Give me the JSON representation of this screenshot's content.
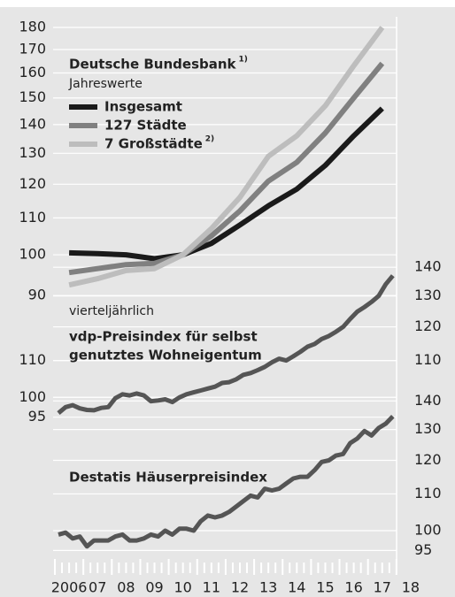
{
  "chart_data": [
    {
      "type": "line",
      "title": "Deutsche Bundesbank",
      "title_note": "1)",
      "subtitle": "Jahreswerte",
      "log_scale": true,
      "x": [
        2006,
        2007,
        2008,
        2009,
        2010,
        2011,
        2012,
        2013,
        2014,
        2015,
        2016,
        2017
      ],
      "series": [
        {
          "name": "Insgesamt",
          "color": "#1a1a1a",
          "values": [
            100.5,
            100.3,
            100,
            99,
            100,
            103,
            108,
            113.5,
            118.5,
            126,
            136,
            146
          ]
        },
        {
          "name": "127 Städte",
          "color": "#808080",
          "values": [
            95.5,
            96.5,
            97.5,
            97.8,
            100,
            105,
            112,
            121,
            127,
            137,
            150,
            164
          ]
        },
        {
          "name": "7 Großstädte",
          "note": "2)",
          "color": "#bdbdbd",
          "values": [
            92.5,
            94,
            96,
            96.5,
            100,
            107,
            116,
            129,
            136,
            147,
            163,
            180
          ]
        }
      ],
      "ylim": [
        88,
        185
      ],
      "yticks": [
        90,
        100,
        110,
        120,
        130,
        140,
        150,
        160,
        170,
        180
      ]
    },
    {
      "type": "line",
      "subtitle": "vierteljährlich",
      "title": [
        "vdp-Preisindex für selbst",
        "genutztes Wohneigentum"
      ],
      "log_scale": true,
      "x": [
        2006,
        2006.25,
        2006.5,
        2006.75,
        2007,
        2007.25,
        2007.5,
        2007.75,
        2008,
        2008.25,
        2008.5,
        2008.75,
        2009,
        2009.25,
        2009.5,
        2009.75,
        2010,
        2010.25,
        2010.5,
        2010.75,
        2011,
        2011.25,
        2011.5,
        2011.75,
        2012,
        2012.25,
        2012.5,
        2012.75,
        2013,
        2013.25,
        2013.5,
        2013.75,
        2014,
        2014.25,
        2014.5,
        2014.75,
        2015,
        2015.25,
        2015.5,
        2015.75,
        2016,
        2016.25,
        2016.5,
        2016.75,
        2017,
        2017.25,
        2017.5,
        2017.75
      ],
      "series": [
        {
          "color": "#555555",
          "values": [
            96,
            97.5,
            98,
            97.2,
            96.8,
            96.7,
            97.3,
            97.5,
            99.8,
            100.8,
            100.5,
            101,
            100.5,
            99,
            99.2,
            99.5,
            98.8,
            100,
            100.8,
            101.3,
            101.8,
            102.3,
            102.8,
            103.8,
            104,
            104.8,
            106,
            106.5,
            107.3,
            108.2,
            109.5,
            110.5,
            110,
            111.2,
            112.5,
            114,
            114.8,
            116.3,
            117.2,
            118.5,
            120,
            122.5,
            124.8,
            126.3,
            128,
            130,
            134,
            137
          ]
        }
      ],
      "ylim": [
        93,
        142
      ],
      "yticks": [
        95,
        100,
        110
      ],
      "y2lim": [
        93,
        142
      ],
      "y2ticks": [
        110,
        120,
        130,
        140
      ]
    },
    {
      "type": "line",
      "title": "Destatis Häuserpreisindex",
      "log_scale": true,
      "x": [
        2006,
        2006.25,
        2006.5,
        2006.75,
        2007,
        2007.25,
        2007.5,
        2007.75,
        2008,
        2008.25,
        2008.5,
        2008.75,
        2009,
        2009.25,
        2009.5,
        2009.75,
        2010,
        2010.25,
        2010.5,
        2010.75,
        2011,
        2011.25,
        2011.5,
        2011.75,
        2012,
        2012.25,
        2012.5,
        2012.75,
        2013,
        2013.25,
        2013.5,
        2013.75,
        2014,
        2014.25,
        2014.5,
        2014.75,
        2015,
        2015.25,
        2015.5,
        2015.75,
        2016,
        2016.25,
        2016.5,
        2016.75,
        2017,
        2017.25,
        2017.5,
        2017.75
      ],
      "series": [
        {
          "color": "#555555",
          "axis": "y2",
          "values": [
            99,
            99.5,
            98,
            98.5,
            96,
            97.5,
            97.5,
            97.5,
            98.5,
            99,
            97.5,
            97.5,
            98,
            99,
            98.5,
            100,
            99,
            100.5,
            100.5,
            100,
            102.5,
            104,
            103.5,
            104,
            105,
            106.5,
            108,
            109.5,
            109,
            111.5,
            111,
            111.5,
            113,
            114.5,
            115,
            115,
            117,
            119.5,
            120,
            121.5,
            122,
            125.5,
            127,
            129.5,
            128,
            130.5,
            132,
            134.5
          ]
        }
      ],
      "y2lim": [
        94,
        145
      ],
      "y2ticks": [
        95,
        100,
        110,
        120,
        130,
        140
      ]
    }
  ],
  "x_axis": {
    "xlim": [
      2006,
      2019
    ],
    "xticks": [
      2006,
      {
        "value": 2007,
        "label": "07"
      },
      {
        "value": 2008,
        "label": "08"
      },
      {
        "value": 2009,
        "label": "09"
      },
      {
        "value": 2010,
        "label": "10"
      },
      {
        "value": 2011,
        "label": "11"
      },
      {
        "value": 2012,
        "label": "12"
      },
      {
        "value": 2013,
        "label": "13"
      },
      {
        "value": 2014,
        "label": "14"
      },
      {
        "value": 2015,
        "label": "15"
      },
      {
        "value": 2016,
        "label": "16"
      },
      {
        "value": 2017,
        "label": "17"
      },
      {
        "value": 2018,
        "label": "18"
      }
    ]
  }
}
